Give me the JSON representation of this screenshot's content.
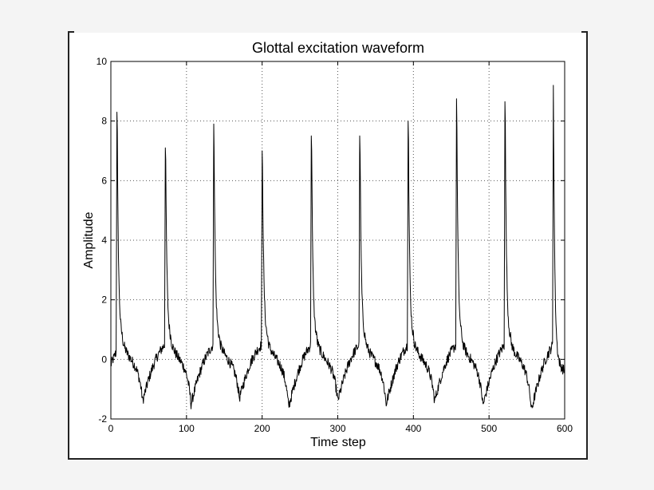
{
  "chart_data": {
    "type": "line",
    "title": "Glottal excitation waveform",
    "xlabel": "Time step",
    "ylabel": "Amplitude",
    "xlim": [
      0,
      600
    ],
    "ylim": [
      -2,
      10
    ],
    "xticks": [
      0,
      100,
      200,
      300,
      400,
      500,
      600
    ],
    "yticks": [
      -2,
      0,
      2,
      4,
      6,
      8,
      10
    ],
    "grid": "dotted",
    "series": [
      {
        "color": "#000000",
        "pulses": [
          {
            "peak_x": 8,
            "peak_y": 8.3,
            "trough_x": 42,
            "trough_y": -1.4
          },
          {
            "peak_x": 72,
            "peak_y": 7.1,
            "trough_x": 106,
            "trough_y": -1.5
          },
          {
            "peak_x": 136,
            "peak_y": 7.9,
            "trough_x": 170,
            "trough_y": -1.3
          },
          {
            "peak_x": 200,
            "peak_y": 7.0,
            "trough_x": 235,
            "trough_y": -1.6
          },
          {
            "peak_x": 265,
            "peak_y": 7.5,
            "trough_x": 300,
            "trough_y": -1.4
          },
          {
            "peak_x": 329,
            "peak_y": 7.5,
            "trough_x": 364,
            "trough_y": -1.5
          },
          {
            "peak_x": 393,
            "peak_y": 8.0,
            "trough_x": 428,
            "trough_y": -1.4
          },
          {
            "peak_x": 457,
            "peak_y": 8.75,
            "trough_x": 492,
            "trough_y": -1.55
          },
          {
            "peak_x": 521,
            "peak_y": 8.65,
            "trough_x": 556,
            "trough_y": -1.7
          },
          {
            "peak_x": 585,
            "peak_y": 9.2,
            "trough_x": null,
            "trough_y": null
          }
        ]
      }
    ]
  }
}
